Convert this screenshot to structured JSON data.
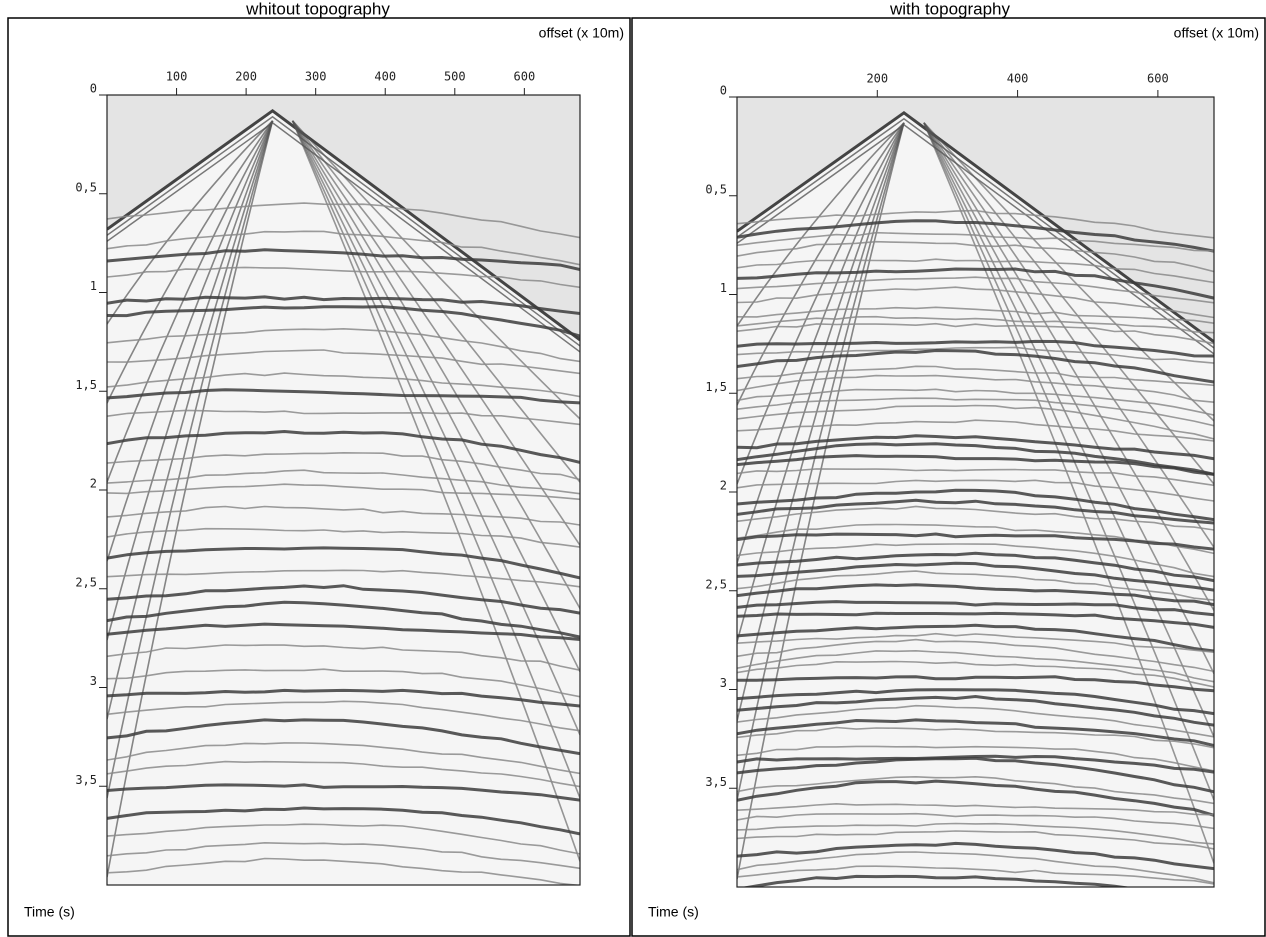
{
  "chart_data": [
    {
      "type": "seismic",
      "title": "whitout topography",
      "xlabel": "offset (x 10m)",
      "ylabel": "Time (s)",
      "xlim": [
        0,
        680
      ],
      "xticks": [
        100,
        200,
        300,
        400,
        500,
        600
      ],
      "ylim": [
        0,
        4
      ],
      "yticks": [
        0,
        {
          "value": 0.5,
          "label": "0,5"
        },
        1,
        {
          "value": 1.5,
          "label": "1,5"
        },
        2,
        {
          "value": 2.5,
          "label": "2,5"
        },
        3,
        {
          "value": 3.5,
          "label": "3,5"
        }
      ]
    },
    {
      "type": "seismic",
      "title": "with topography",
      "xlabel": "offset (x 10m)",
      "ylabel": "Time (s)",
      "xlim": [
        0,
        680
      ],
      "xticks": [
        200,
        400,
        600
      ],
      "ylim": [
        0,
        4
      ],
      "yticks": [
        0,
        {
          "value": 0.5,
          "label": "0,5"
        },
        1,
        {
          "value": 1.5,
          "label": "1,5"
        },
        2,
        {
          "value": 2.5,
          "label": "2,5"
        },
        3,
        {
          "value": 3.5,
          "label": "3,5"
        }
      ]
    }
  ]
}
